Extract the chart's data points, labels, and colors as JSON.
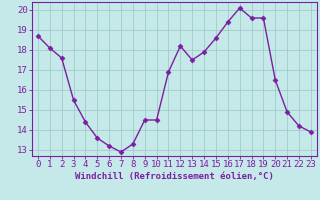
{
  "x": [
    0,
    1,
    2,
    3,
    4,
    5,
    6,
    7,
    8,
    9,
    10,
    11,
    12,
    13,
    14,
    15,
    16,
    17,
    18,
    19,
    20,
    21,
    22,
    23
  ],
  "y": [
    18.7,
    18.1,
    17.6,
    15.5,
    14.4,
    13.6,
    13.2,
    12.9,
    13.3,
    14.5,
    14.5,
    16.9,
    18.2,
    17.5,
    17.9,
    18.6,
    19.4,
    20.1,
    19.6,
    19.6,
    16.5,
    14.9,
    14.2,
    13.9
  ],
  "line_color": "#7B1FA2",
  "marker": "D",
  "marker_size": 2.5,
  "bg_color": "#c5e8e8",
  "grid_color": "#a0cccc",
  "xlabel": "Windchill (Refroidissement éolien,°C)",
  "ylim_min": 12.7,
  "ylim_max": 20.4,
  "xlim_min": -0.5,
  "xlim_max": 23.5,
  "yticks": [
    13,
    14,
    15,
    16,
    17,
    18,
    19,
    20
  ],
  "xticks": [
    0,
    1,
    2,
    3,
    4,
    5,
    6,
    7,
    8,
    9,
    10,
    11,
    12,
    13,
    14,
    15,
    16,
    17,
    18,
    19,
    20,
    21,
    22,
    23
  ],
  "xlabel_fontsize": 6.5,
  "tick_fontsize": 6.5,
  "line_width": 1.0
}
